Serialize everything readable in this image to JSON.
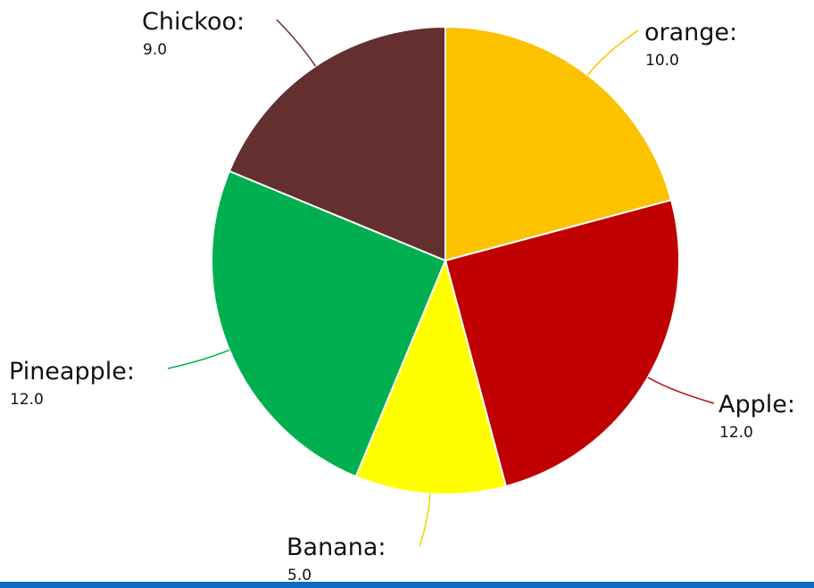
{
  "chart_data": {
    "type": "pie",
    "title": "",
    "slices": [
      {
        "label": "orange:",
        "value": 10.0,
        "value_text": "10.0",
        "color": "#fcc200"
      },
      {
        "label": "Apple:",
        "value": 12.0,
        "value_text": "12.0",
        "color": "#c00000"
      },
      {
        "label": "Banana:",
        "value": 5.0,
        "value_text": "5.0",
        "color": "#ffff00"
      },
      {
        "label": "Pineapple:",
        "value": 12.0,
        "value_text": "12.0",
        "color": "#00b050"
      },
      {
        "label": "Chickoo:",
        "value": 9.0,
        "value_text": "9.0",
        "color": "#632f2f"
      }
    ],
    "start_angle": "12 o'clock",
    "direction": "clockwise",
    "legend": "none"
  },
  "footer": {
    "bar_color": "#0e6cc4"
  }
}
